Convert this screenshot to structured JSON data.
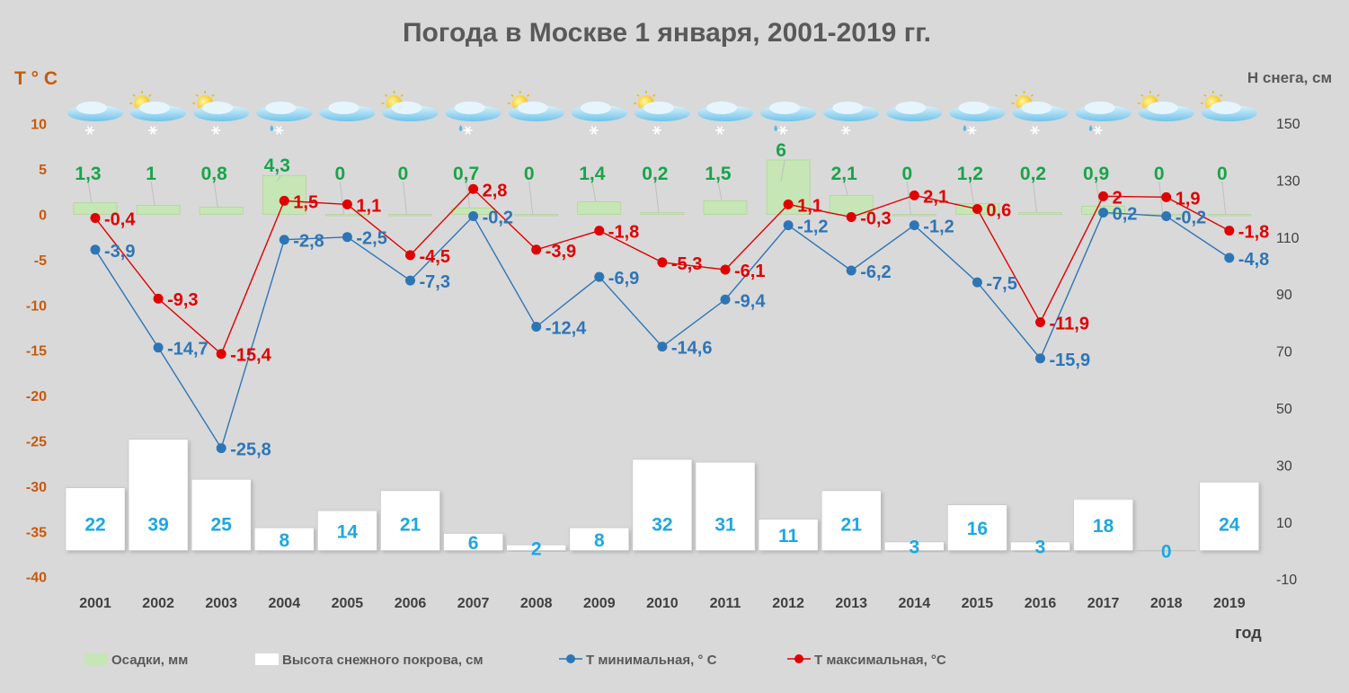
{
  "chart_data": {
    "type": "bar+line",
    "title": "Погода в Москве 1 января, 2001-2019 гг.",
    "y_left_label": "T ° C",
    "y_right_label": "Н снега, см",
    "x_axis_label": "год",
    "y_left_ticks": [
      "10",
      "5",
      "0",
      "-5",
      "-10",
      "-15",
      "-20",
      "-25",
      "-30",
      "-35",
      "-40"
    ],
    "y_left_range": [
      -40,
      10
    ],
    "y_right_ticks": [
      "150",
      "130",
      "110",
      "90",
      "70",
      "50",
      "30",
      "10",
      "-10"
    ],
    "y_right_range": [
      -10,
      150
    ],
    "categories": [
      "2001",
      "2002",
      "2003",
      "2004",
      "2005",
      "2006",
      "2007",
      "2008",
      "2009",
      "2010",
      "2011",
      "2012",
      "2013",
      "2014",
      "2015",
      "2016",
      "2017",
      "2018",
      "2019"
    ],
    "weather_icons": [
      "cloud-snow",
      "sun-cloud-snow",
      "sun-cloud-snow",
      "cloud-rain-snow",
      "cloud",
      "sun-cloud",
      "cloud-rain-snow",
      "sun-cloud",
      "cloud-snow",
      "sun-cloud-snow",
      "cloud-snow",
      "cloud-rain-snow",
      "cloud-snow",
      "cloud",
      "cloud-rain-snow",
      "sun-cloud-snow",
      "cloud-rain-snow",
      "sun-cloud",
      "sun-cloud"
    ],
    "series": [
      {
        "name": "Осадки, мм",
        "type": "bar",
        "axis": "left",
        "color": "#c6e6b5",
        "values": [
          1.3,
          1,
          0.8,
          4.3,
          0,
          0,
          0.7,
          0,
          1.4,
          0.2,
          1.5,
          6,
          2.1,
          0,
          1.2,
          0.2,
          0.9,
          0,
          0
        ],
        "labels": [
          "1,3",
          "1",
          "0,8",
          "4,3",
          "0",
          "0",
          "0,7",
          "0",
          "1,4",
          "0,2",
          "1,5",
          "6",
          "2,1",
          "0",
          "1,2",
          "0,2",
          "0,9",
          "0",
          "0"
        ]
      },
      {
        "name": "Высота снежного покрова, см",
        "type": "bar",
        "axis": "right",
        "color": "#ffffff",
        "values": [
          22,
          39,
          25,
          8,
          14,
          21,
          6,
          2,
          8,
          32,
          31,
          11,
          21,
          3,
          16,
          3,
          18,
          0,
          24
        ],
        "labels": [
          "22",
          "39",
          "25",
          "8",
          "14",
          "21",
          "6",
          "2",
          "8",
          "32",
          "31",
          "11",
          "21",
          "3",
          "16",
          "3",
          "18",
          "0",
          "24"
        ]
      },
      {
        "name": "Т минимальная, ° С",
        "type": "line",
        "axis": "left",
        "color": "#2e75b6",
        "values": [
          -3.9,
          -14.7,
          -25.8,
          -2.8,
          -2.5,
          -7.3,
          -0.2,
          -12.4,
          -6.9,
          -14.6,
          -9.4,
          -1.2,
          -6.2,
          -1.2,
          -7.5,
          -15.9,
          0.2,
          -0.2,
          -4.8
        ],
        "labels": [
          "-3,9",
          "-14,7",
          "-25,8",
          "-2,8",
          "-2,5",
          "-7,3",
          "-0,2",
          "-12,4",
          "-6,9",
          "-14,6",
          "-9,4",
          "-1,2",
          "-6,2",
          "-1,2",
          "-7,5",
          "-15,9",
          "0,2",
          "-0,2",
          "-4,8"
        ]
      },
      {
        "name": "Т максимальная, °С",
        "type": "line",
        "axis": "left",
        "color": "#e00000",
        "values": [
          -0.4,
          -9.3,
          -15.4,
          1.5,
          1.1,
          -4.5,
          2.8,
          -3.9,
          -1.8,
          -5.3,
          -6.1,
          1.1,
          -0.3,
          2.1,
          0.6,
          -11.9,
          2,
          1.9,
          -1.8
        ],
        "labels": [
          "-0,4",
          "-9,3",
          "-15,4",
          "1,5",
          "1,1",
          "-4,5",
          "2,8",
          "-3,9",
          "-1,8",
          "-5,3",
          "-6,1",
          "1,1",
          "-0,3",
          "2,1",
          "0,6",
          "-11,9",
          "2",
          "1,9",
          "-1,8"
        ]
      }
    ],
    "legend_position": "bottom",
    "grid": false
  }
}
